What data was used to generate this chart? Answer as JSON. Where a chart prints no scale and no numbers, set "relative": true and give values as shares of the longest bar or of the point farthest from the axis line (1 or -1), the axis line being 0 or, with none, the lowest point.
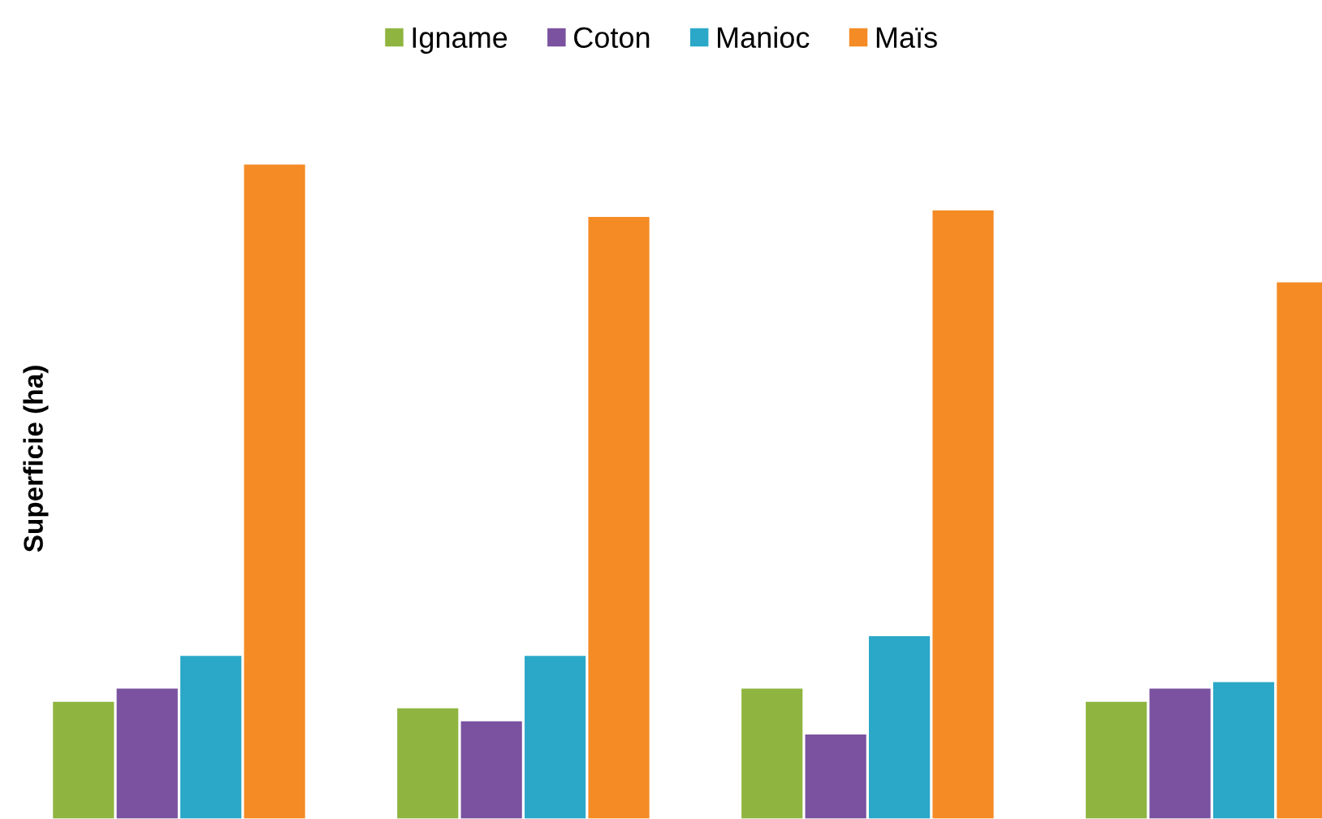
{
  "chart_data": {
    "type": "bar",
    "relative": true,
    "ylabel": "Superficie (ha)",
    "legend": "top",
    "categories": [
      null,
      null,
      null,
      null
    ],
    "series": [
      {
        "name": "Igname",
        "color": "#8fb540",
        "values": [
          0.18,
          0.17,
          0.2,
          0.18
        ]
      },
      {
        "name": "Coton",
        "color": "#7a52a0",
        "values": [
          0.2,
          0.15,
          0.13,
          0.2
        ]
      },
      {
        "name": "Manioc",
        "color": "#2ba8c8",
        "values": [
          0.25,
          0.25,
          0.28,
          0.21
        ]
      },
      {
        "name": "Maïs",
        "color": "#f58b25",
        "values": [
          1,
          0.92,
          0.93,
          0.82
        ]
      }
    ]
  }
}
